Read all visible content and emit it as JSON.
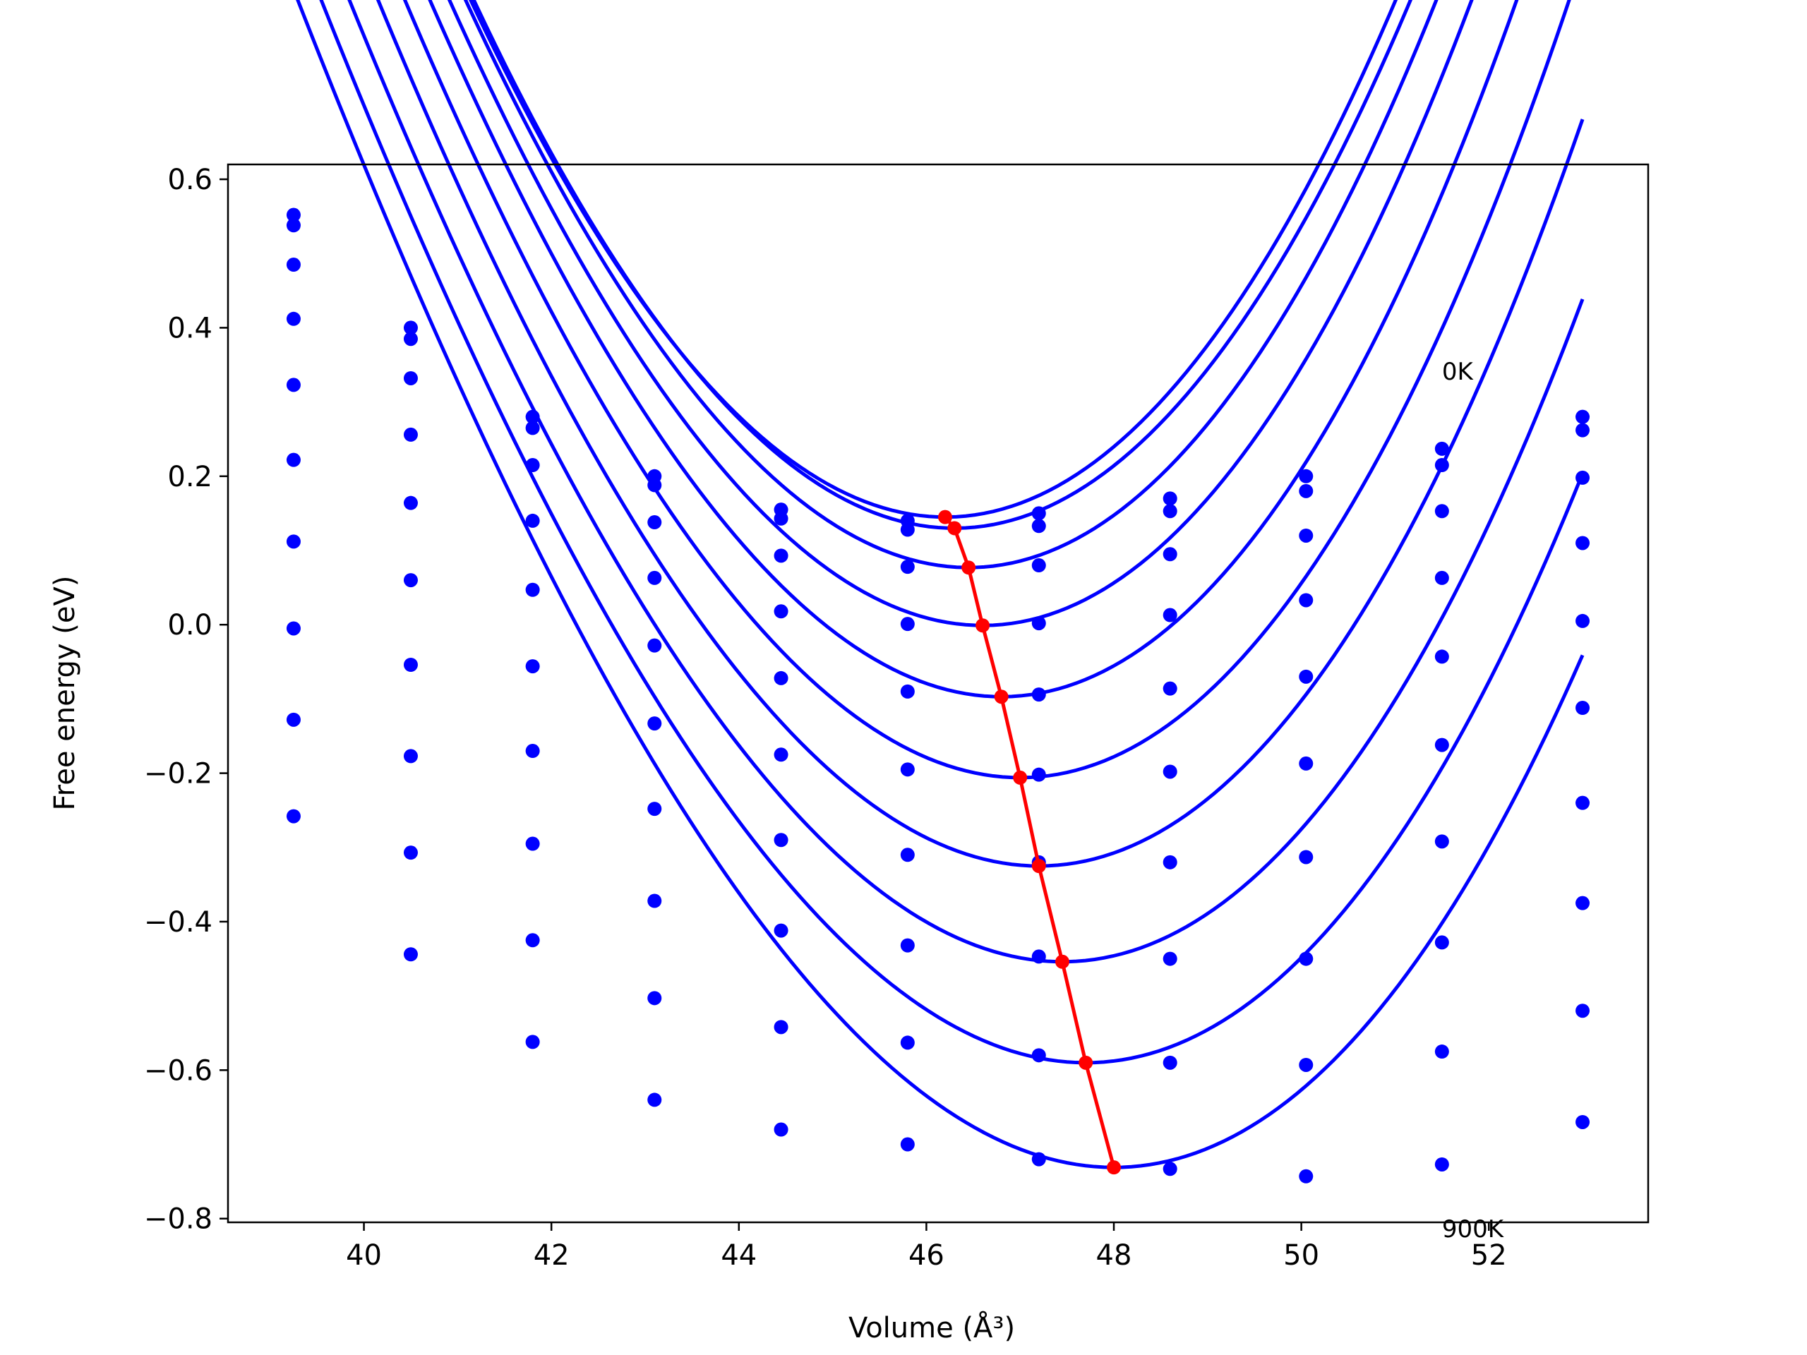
{
  "chart_data": {
    "type": "line",
    "title": "",
    "xlabel": "Volume (Å³)",
    "ylabel": "Free energy (eV)",
    "xlim": [
      38.55,
      53.7
    ],
    "ylim": [
      -0.805,
      0.62
    ],
    "xticks": [
      40,
      42,
      44,
      46,
      48,
      50,
      52
    ],
    "yticks": [
      0.6,
      0.4,
      0.2,
      0.0,
      -0.2,
      -0.4,
      -0.6,
      -0.8
    ],
    "xtick_labels": [
      "40",
      "42",
      "44",
      "46",
      "48",
      "50",
      "52"
    ],
    "ytick_labels": [
      "0.6",
      "0.4",
      "0.2",
      "0.0",
      "−0.2",
      "−0.4",
      "−0.6",
      "−0.8"
    ],
    "grid": false,
    "annotations": [
      {
        "text": "0K",
        "x": 51.5,
        "y": 0.33
      },
      {
        "text": "900K",
        "x": 51.5,
        "y": -0.825
      }
    ],
    "curve_color": "#0000ff",
    "point_color": "#0000ff",
    "minimum_color": "#ff0000",
    "x": [
      39.25,
      40.5,
      41.8,
      43.1,
      44.45,
      45.8,
      47.2,
      48.6,
      50.05,
      51.5,
      53.0
    ],
    "curves": [
      {
        "y0": 0.145,
        "v0": 46.2,
        "a": 0.0287,
        "b": 0.0003,
        "points": [
          0.552,
          0.4,
          0.28,
          0.2,
          0.155,
          0.14,
          0.15,
          0.17,
          0.2,
          0.237,
          0.28
        ]
      },
      {
        "y0": 0.13,
        "v0": 46.3,
        "a": 0.0286,
        "b": 0.0003,
        "points": [
          0.538,
          0.385,
          0.265,
          0.188,
          0.143,
          0.128,
          0.133,
          0.153,
          0.18,
          0.215,
          0.262
        ]
      },
      {
        "y0": 0.077,
        "v0": 46.45,
        "a": 0.0287,
        "b": 0.0004,
        "points": [
          0.485,
          0.332,
          0.215,
          0.138,
          0.093,
          0.078,
          0.08,
          0.095,
          0.12,
          0.153,
          0.198
        ]
      },
      {
        "y0": -0.001,
        "v0": 46.6,
        "a": 0.0286,
        "b": 0.00045,
        "points": [
          0.412,
          0.256,
          0.14,
          0.063,
          0.018,
          0.001,
          0.002,
          0.013,
          0.033,
          0.063,
          0.11
        ]
      },
      {
        "y0": -0.097,
        "v0": 46.8,
        "a": 0.0283,
        "b": 0.0005,
        "points": [
          0.323,
          0.164,
          0.047,
          -0.028,
          -0.072,
          -0.09,
          -0.094,
          -0.086,
          -0.07,
          -0.043,
          0.005
        ]
      },
      {
        "y0": -0.206,
        "v0": 47.0,
        "a": 0.0276,
        "b": 0.0005,
        "points": [
          0.222,
          0.06,
          -0.056,
          -0.133,
          -0.175,
          -0.195,
          -0.202,
          -0.198,
          -0.187,
          -0.162,
          -0.112
        ]
      },
      {
        "y0": -0.325,
        "v0": 47.2,
        "a": 0.027,
        "b": 0.0005,
        "points": [
          0.112,
          -0.054,
          -0.17,
          -0.248,
          -0.29,
          -0.31,
          -0.32,
          -0.32,
          -0.313,
          -0.292,
          -0.24
        ]
      },
      {
        "y0": -0.454,
        "v0": 47.45,
        "a": 0.0262,
        "b": 0.0005,
        "points": [
          -0.005,
          -0.177,
          -0.295,
          -0.372,
          -0.412,
          -0.432,
          -0.447,
          -0.45,
          -0.45,
          -0.428,
          -0.375
        ]
      },
      {
        "y0": -0.59,
        "v0": 47.7,
        "a": 0.0256,
        "b": 0.0005,
        "points": [
          -0.128,
          -0.307,
          -0.425,
          -0.503,
          -0.542,
          -0.563,
          -0.58,
          -0.59,
          -0.593,
          -0.575,
          -0.52
        ]
      },
      {
        "y0": -0.731,
        "v0": 48.0,
        "a": 0.0251,
        "b": 0.0005,
        "points": [
          -0.258,
          -0.444,
          -0.562,
          -0.64,
          -0.68,
          -0.7,
          -0.72,
          -0.733,
          -0.743,
          -0.727,
          -0.67
        ]
      }
    ],
    "minimum_line": {
      "x": [
        46.2,
        46.3,
        46.45,
        46.6,
        46.8,
        47.0,
        47.2,
        47.45,
        47.7,
        48.0
      ],
      "y": [
        0.145,
        0.13,
        0.077,
        -0.001,
        -0.097,
        -0.206,
        -0.325,
        -0.454,
        -0.59,
        -0.731
      ]
    }
  }
}
